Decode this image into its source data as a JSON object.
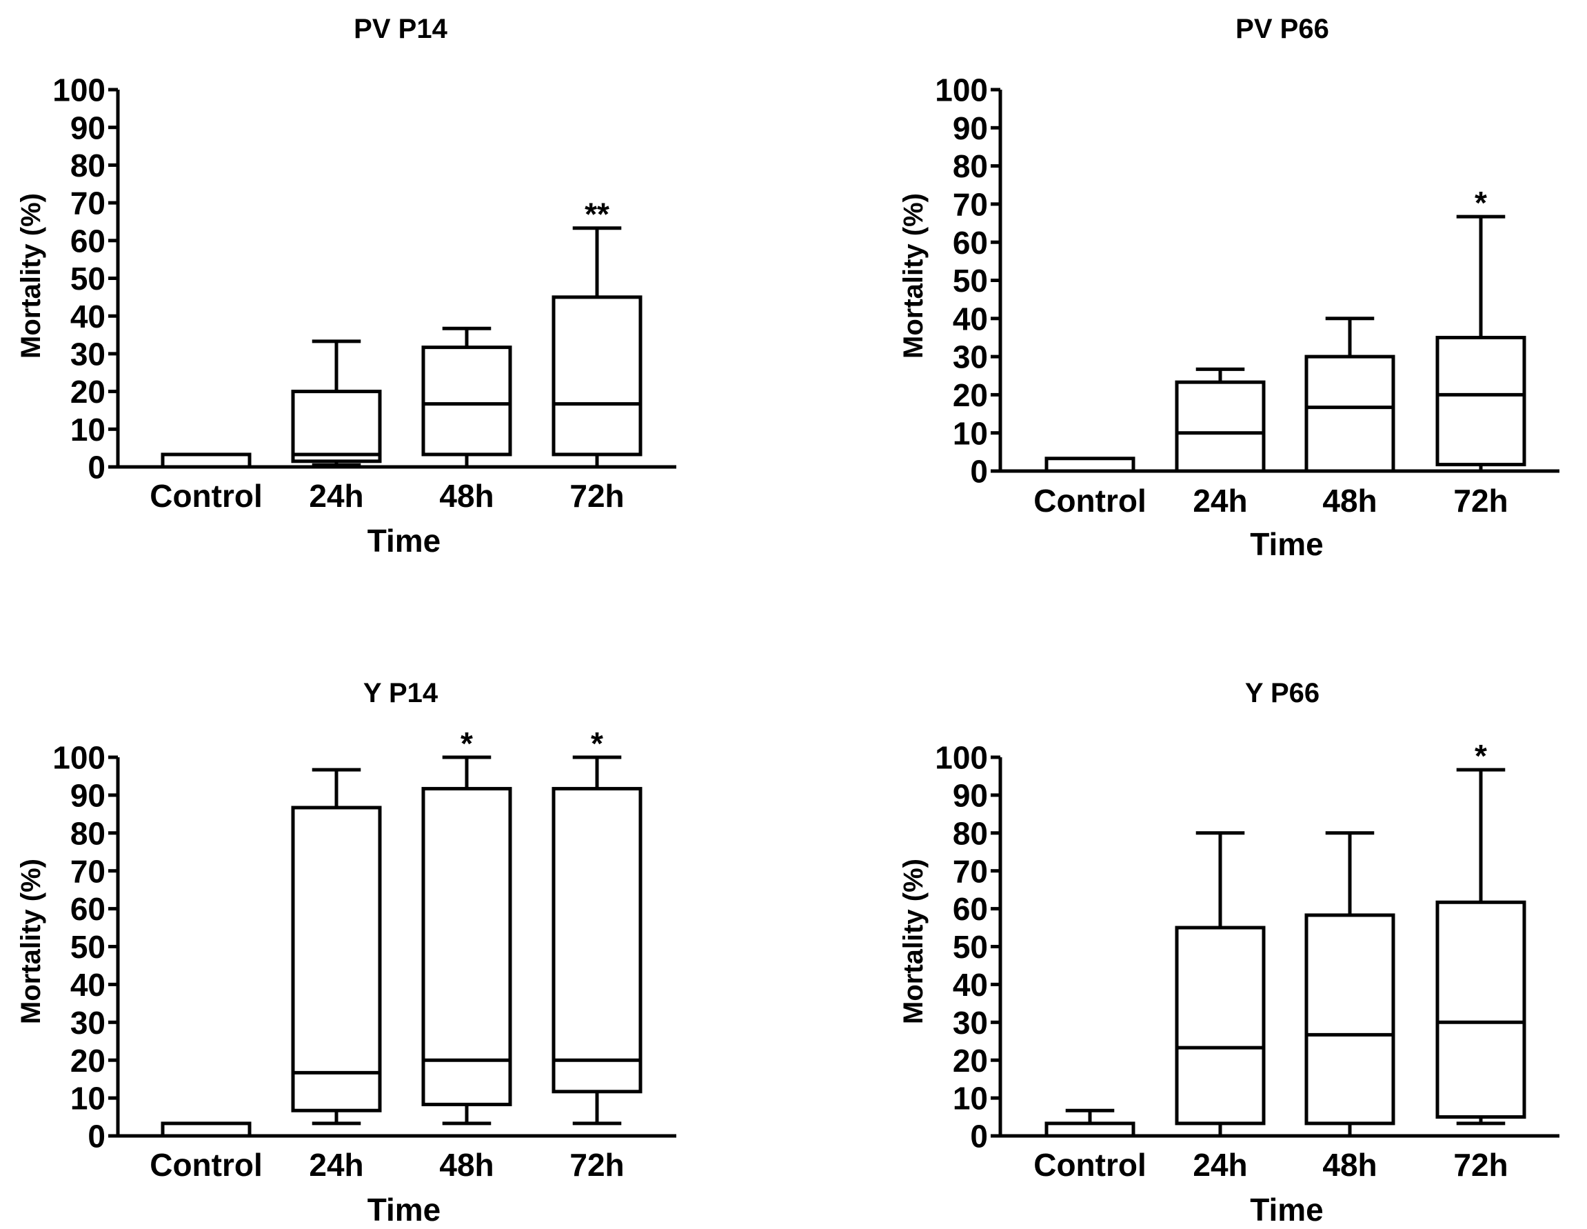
{
  "chart_data": [
    {
      "type": "box",
      "title": "PV P14",
      "xlabel": "Time",
      "ylabel": "Mortality (%)",
      "ylim": [
        0,
        100
      ],
      "yticks": [
        0,
        10,
        20,
        30,
        40,
        50,
        60,
        70,
        80,
        90,
        100
      ],
      "categories": [
        "Control",
        "24h",
        "48h",
        "72h"
      ],
      "boxes": [
        {
          "min": 0,
          "q1": 0,
          "median": 0,
          "q3": 3.3,
          "max": 3.3,
          "annotation": ""
        },
        {
          "min": 0.5,
          "q1": 1.5,
          "median": 3.3,
          "q3": 20,
          "max": 33.3,
          "annotation": ""
        },
        {
          "min": 0,
          "q1": 3.3,
          "median": 16.7,
          "q3": 31.7,
          "max": 36.7,
          "annotation": ""
        },
        {
          "min": 0,
          "q1": 3.3,
          "median": 16.7,
          "q3": 45,
          "max": 63.3,
          "annotation": "**"
        }
      ]
    },
    {
      "type": "box",
      "title": "PV P66",
      "xlabel": "Time",
      "ylabel": "Mortality (%)",
      "ylim": [
        0,
        100
      ],
      "yticks": [
        0,
        10,
        20,
        30,
        40,
        50,
        60,
        70,
        80,
        90,
        100
      ],
      "categories": [
        "Control",
        "24h",
        "48h",
        "72h"
      ],
      "boxes": [
        {
          "min": 0,
          "q1": 0,
          "median": 0,
          "q3": 3.3,
          "max": 3.3,
          "annotation": ""
        },
        {
          "min": 0,
          "q1": 0,
          "median": 10,
          "q3": 23.3,
          "max": 26.7,
          "annotation": ""
        },
        {
          "min": 0,
          "q1": 0,
          "median": 16.7,
          "q3": 30,
          "max": 40,
          "annotation": ""
        },
        {
          "min": 0,
          "q1": 1.7,
          "median": 20,
          "q3": 35,
          "max": 66.7,
          "annotation": "*"
        }
      ]
    },
    {
      "type": "box",
      "title": "Y P14",
      "xlabel": "Time",
      "ylabel": "Mortality (%)",
      "ylim": [
        0,
        100
      ],
      "yticks": [
        0,
        10,
        20,
        30,
        40,
        50,
        60,
        70,
        80,
        90,
        100
      ],
      "categories": [
        "Control",
        "24h",
        "48h",
        "72h"
      ],
      "boxes": [
        {
          "min": 0,
          "q1": 0,
          "median": 0,
          "q3": 3.3,
          "max": 3.3,
          "annotation": ""
        },
        {
          "min": 3.3,
          "q1": 6.7,
          "median": 16.7,
          "q3": 86.7,
          "max": 96.7,
          "annotation": ""
        },
        {
          "min": 3.3,
          "q1": 8.3,
          "median": 20,
          "q3": 91.7,
          "max": 100,
          "annotation": "*"
        },
        {
          "min": 3.3,
          "q1": 11.7,
          "median": 20,
          "q3": 91.7,
          "max": 100,
          "annotation": "*"
        }
      ]
    },
    {
      "type": "box",
      "title": "Y P66",
      "xlabel": "Time",
      "ylabel": "Mortality (%)",
      "ylim": [
        0,
        100
      ],
      "yticks": [
        0,
        10,
        20,
        30,
        40,
        50,
        60,
        70,
        80,
        90,
        100
      ],
      "categories": [
        "Control",
        "24h",
        "48h",
        "72h"
      ],
      "boxes": [
        {
          "min": 0,
          "q1": 0,
          "median": 0,
          "q3": 3.3,
          "max": 6.7,
          "annotation": ""
        },
        {
          "min": 0,
          "q1": 3.3,
          "median": 23.3,
          "q3": 55,
          "max": 80,
          "annotation": ""
        },
        {
          "min": 0,
          "q1": 3.3,
          "median": 26.7,
          "q3": 58.3,
          "max": 80,
          "annotation": ""
        },
        {
          "min": 3.3,
          "q1": 5,
          "median": 30,
          "q3": 61.7,
          "max": 96.7,
          "annotation": "*"
        }
      ]
    }
  ]
}
